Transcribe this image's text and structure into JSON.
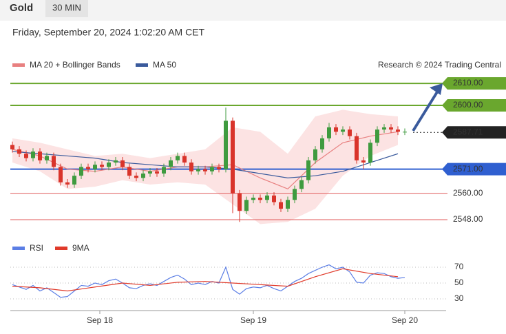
{
  "header": {
    "symbol": "Gold",
    "interval": "30 MIN"
  },
  "timestamp": "Friday, September 20, 2024 1:02:20 AM CET",
  "chart_data": [
    {
      "type": "candlestick",
      "attribution": "Research © 2024 Trading Central",
      "ylim": [
        2543,
        2616.6
      ],
      "up_color": "#3f9b3f",
      "down_color": "#d9342b",
      "candles": {
        "open": [
          2582,
          2580,
          2578,
          2576,
          2579,
          2575,
          2577,
          2572,
          2565,
          2564,
          2568,
          2572,
          2571,
          2573,
          2572,
          2574,
          2575,
          2572,
          2568,
          2567,
          2569,
          2570,
          2569,
          2572,
          2575,
          2577,
          2574,
          2570,
          2571,
          2570,
          2572,
          2571,
          2593,
          2560,
          2552,
          2557,
          2558,
          2557,
          2559,
          2556,
          2553,
          2557,
          2562,
          2566,
          2575,
          2580,
          2585,
          2590,
          2588,
          2589,
          2586,
          2575,
          2574,
          2583,
          2589,
          2590,
          2589,
          2588
        ],
        "high": [
          2583.5,
          2581.5,
          2579.5,
          2580.5,
          2580.5,
          2578.5,
          2578.5,
          2573.5,
          2566.5,
          2569.5,
          2573.5,
          2573.5,
          2574.5,
          2574.5,
          2575.5,
          2576.5,
          2576.5,
          2573.5,
          2569.5,
          2570.5,
          2571.5,
          2571.5,
          2573.5,
          2576.5,
          2578.5,
          2578.5,
          2575.5,
          2572.5,
          2572.5,
          2573.5,
          2573.5,
          2599,
          2594.5,
          2561.5,
          2558.5,
          2559.5,
          2559.5,
          2560.5,
          2560.5,
          2557.5,
          2558.5,
          2563.5,
          2567.5,
          2576.5,
          2581.5,
          2586.5,
          2592,
          2591.5,
          2590.5,
          2590.5,
          2587.5,
          2576.5,
          2584.5,
          2590.5,
          2591.5,
          2591.5,
          2590.5,
          2589.5
        ],
        "low": [
          2578.5,
          2576.5,
          2574.5,
          2574.5,
          2573.5,
          2573.5,
          2570.5,
          2563.5,
          2562.5,
          2562.5,
          2566.5,
          2569.5,
          2569.5,
          2570.5,
          2570.5,
          2572.5,
          2570.5,
          2566.5,
          2565.5,
          2565.5,
          2567.5,
          2567.5,
          2567.5,
          2570.5,
          2573.5,
          2572.5,
          2568.5,
          2568.5,
          2568.5,
          2568.5,
          2569.5,
          2569.5,
          2551,
          2547,
          2550.5,
          2555.5,
          2555.5,
          2555.5,
          2554.5,
          2551.5,
          2551.5,
          2555.5,
          2560.5,
          2564.5,
          2573.5,
          2578.5,
          2583.5,
          2586.5,
          2586.5,
          2584.5,
          2573.5,
          2571,
          2572.5,
          2581.5,
          2587.5,
          2587.5,
          2586.5,
          2586.5
        ],
        "close": [
          2580,
          2578,
          2576,
          2579,
          2575,
          2577,
          2572,
          2565,
          2564,
          2568,
          2572,
          2571,
          2573,
          2572,
          2574,
          2575,
          2572,
          2568,
          2567,
          2569,
          2570,
          2569,
          2572,
          2575,
          2577,
          2574,
          2570,
          2571,
          2570,
          2572,
          2571,
          2593,
          2560,
          2552,
          2557,
          2558,
          2557,
          2559,
          2556,
          2553,
          2557,
          2562,
          2566,
          2575,
          2580,
          2585,
          2590,
          2588,
          2589,
          2586,
          2575,
          2574,
          2583,
          2589,
          2590,
          2589,
          2588,
          2588
        ]
      },
      "band_x": [
        0,
        4,
        8,
        12,
        16,
        20,
        24,
        28,
        32,
        36,
        40,
        44,
        48,
        52,
        56
      ],
      "series": [
        {
          "name": "MA 20 + Bollinger Bands",
          "color": "#e88080",
          "values": [
            2580,
            2577,
            2571,
            2570,
            2572,
            2570,
            2572,
            2572,
            2573,
            2567,
            2562,
            2574,
            2583,
            2586,
            2588
          ],
          "upper": [
            2585,
            2583,
            2580,
            2577,
            2578,
            2576,
            2578,
            2580,
            2590,
            2588,
            2578,
            2595,
            2598,
            2596,
            2595
          ],
          "lower": [
            2574,
            2570,
            2562,
            2563,
            2566,
            2564,
            2565,
            2564,
            2555,
            2546,
            2547,
            2553,
            2568,
            2577,
            2582
          ]
        },
        {
          "name": "MA 50",
          "color": "#3a5a9c",
          "values": [
            2579,
            2578,
            2577,
            2576,
            2574,
            2573,
            2572,
            2572,
            2571,
            2569,
            2567,
            2568,
            2570,
            2574,
            2578
          ]
        }
      ],
      "levels": [
        {
          "value": 2610,
          "label": "2610.00",
          "color": "#6aa72e",
          "box": true
        },
        {
          "value": 2600,
          "label": "2600.00",
          "color": "#6aa72e",
          "box": true
        },
        {
          "value": 2587.71,
          "color": "#222222",
          "box": true
        },
        {
          "value": 2571,
          "label": "2571.00",
          "color": "#2f5fd0",
          "box": true
        },
        {
          "value": 2560,
          "label": "2560.00",
          "color": "#e05a5a",
          "box": false
        },
        {
          "value": 2548,
          "label": "2548.00",
          "color": "#e05a5a",
          "box": false
        }
      ]
    },
    {
      "type": "line",
      "ylim": [
        15,
        85
      ],
      "yticks": [
        30,
        50,
        70
      ],
      "xticks": [
        {
          "value": 12.7,
          "label": "Sep 18"
        },
        {
          "value": 35,
          "label": "Sep 19"
        },
        {
          "value": 57,
          "label": "Sep 20"
        }
      ],
      "series": [
        {
          "name": "RSI",
          "color": "#5b7ee5",
          "values": [
            48,
            45,
            42,
            47,
            40,
            44,
            38,
            32,
            33,
            40,
            47,
            46,
            50,
            48,
            53,
            55,
            50,
            44,
            43,
            47,
            49,
            47,
            52,
            57,
            60,
            55,
            48,
            50,
            48,
            52,
            50,
            70,
            42,
            36,
            43,
            45,
            44,
            47,
            43,
            40,
            46,
            52,
            56,
            62,
            66,
            70,
            73,
            68,
            70,
            64,
            51,
            50,
            60,
            63,
            62,
            58,
            56,
            57
          ]
        },
        {
          "name": "9MA",
          "color": "#e03a2a",
          "values": [
            46,
            44,
            40,
            45,
            50,
            47,
            51,
            52,
            50,
            48,
            46,
            58,
            68,
            62,
            58
          ]
        }
      ]
    }
  ]
}
